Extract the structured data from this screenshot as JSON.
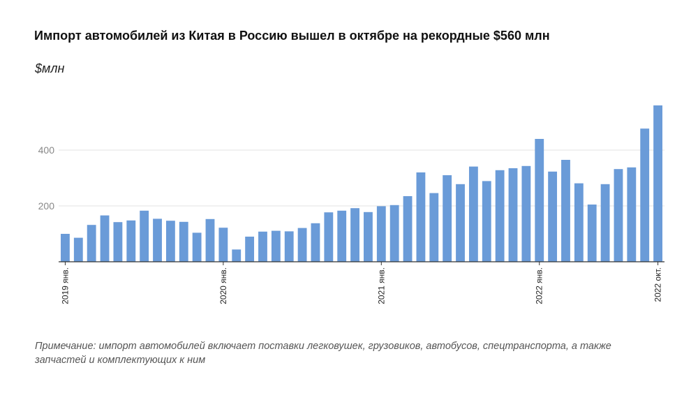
{
  "chart_data": {
    "type": "bar",
    "title": "Импорт автомобилей из Китая в Россию вышел в октябре на рекордные $560 млн",
    "ylabel": "$млн",
    "xlabel": "",
    "ylim": [
      0,
      600
    ],
    "yticks": [
      200,
      400
    ],
    "grid": true,
    "color": "#6a9bd8",
    "tick_labels": [
      {
        "index": 0,
        "label": "2019 янв."
      },
      {
        "index": 12,
        "label": "2020 янв."
      },
      {
        "index": 24,
        "label": "2021 янв."
      },
      {
        "index": 36,
        "label": "2022 янв."
      },
      {
        "index": 45,
        "label": "2022 окт."
      }
    ],
    "values": [
      100,
      86,
      132,
      166,
      142,
      148,
      183,
      154,
      147,
      143,
      104,
      153,
      122,
      44,
      90,
      108,
      111,
      109,
      121,
      138,
      177,
      183,
      192,
      178,
      199,
      203,
      235,
      320,
      246,
      310,
      278,
      341,
      289,
      328,
      335,
      343,
      440,
      323,
      365,
      281,
      205,
      278,
      332,
      338,
      477,
      560
    ]
  },
  "note": "Примечание: импорт автомобилей включает поставки легковушек, грузовиков, автобусов, спецтранспорта, а также запчастей и комплектующих к ним"
}
